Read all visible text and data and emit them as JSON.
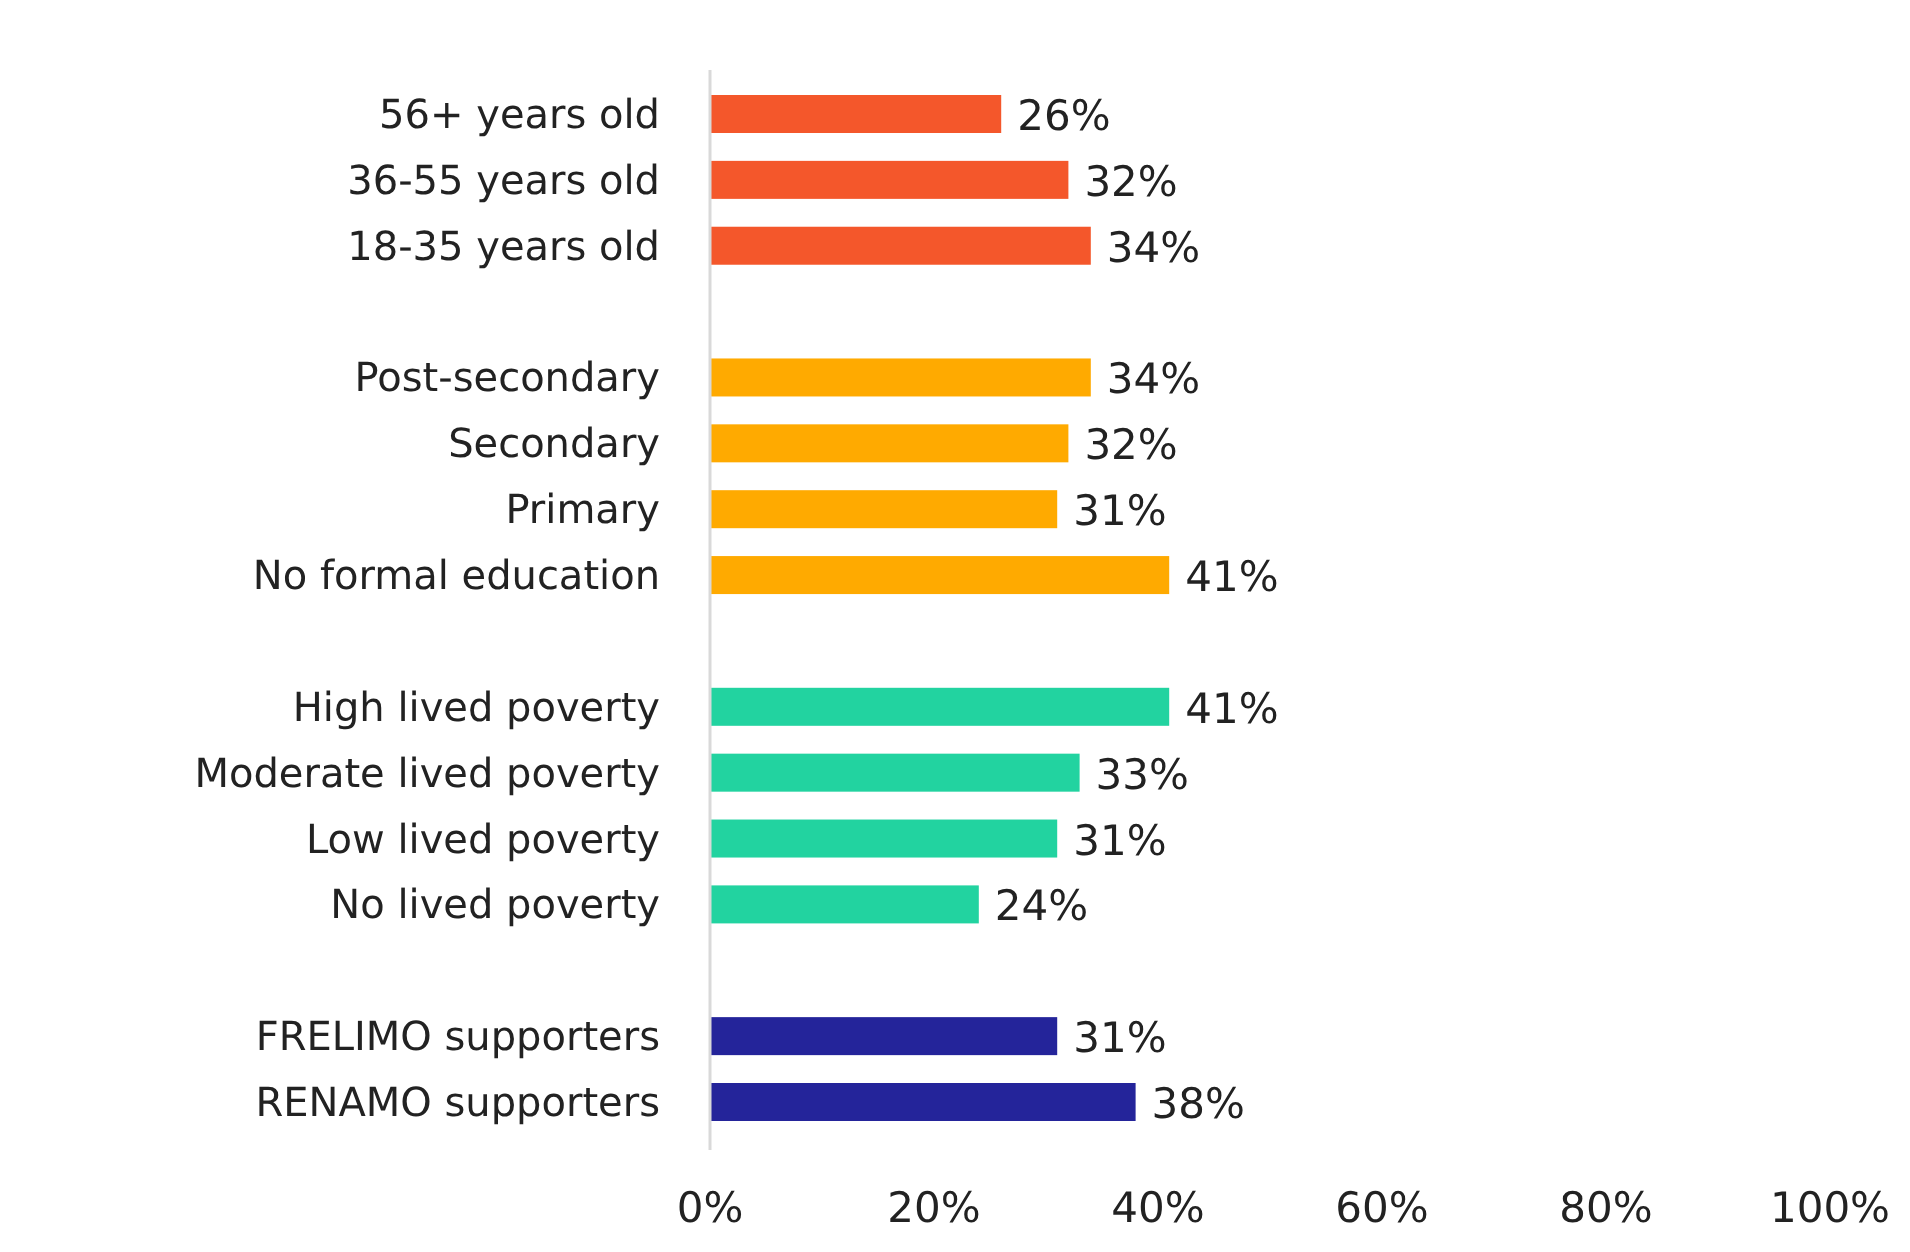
{
  "chart_data": {
    "type": "bar",
    "orientation": "horizontal",
    "categories": [
      "56+ years old",
      "36-55 years old",
      "18-35 years old",
      null,
      "Post-secondary",
      "Secondary",
      "Primary",
      "No formal education",
      null,
      "High lived poverty",
      "Moderate lived poverty",
      "Low lived poverty",
      "No lived poverty",
      null,
      "FRELIMO supporters",
      "RENAMO supporters"
    ],
    "values": [
      26,
      32,
      34,
      null,
      34,
      32,
      31,
      41,
      null,
      41,
      33,
      31,
      24,
      null,
      31,
      38
    ],
    "value_labels": [
      "26%",
      "32%",
      "34%",
      null,
      "34%",
      "32%",
      "31%",
      "41%",
      null,
      "41%",
      "33%",
      "31%",
      "24%",
      null,
      "31%",
      "38%"
    ],
    "colors": [
      "#f4572b",
      "#f4572b",
      "#f4572b",
      null,
      "#ffaa00",
      "#ffaa00",
      "#ffaa00",
      "#ffaa00",
      null,
      "#22d3a0",
      "#22d3a0",
      "#22d3a0",
      "#22d3a0",
      null,
      "#24249a",
      "#24249a"
    ],
    "xlim": [
      0,
      100
    ],
    "xticks": [
      {
        "value": 0,
        "label": "0%"
      },
      {
        "value": 20,
        "label": "20%"
      },
      {
        "value": 40,
        "label": "40%"
      },
      {
        "value": 60,
        "label": "60%"
      },
      {
        "value": 80,
        "label": "80%"
      },
      {
        "value": 100,
        "label": "100%"
      }
    ],
    "grid": false
  }
}
